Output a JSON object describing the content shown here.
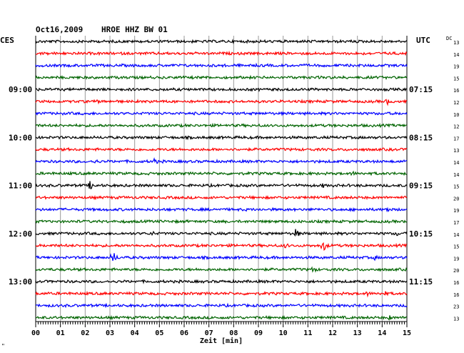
{
  "header": {
    "date": "Oct16,2009",
    "station": "HROE HHZ BW 01",
    "left_zone": "CES",
    "right_zone": "UTC",
    "dc_label": "DC"
  },
  "footer": {
    "xlabel": "Zeit [min]",
    "corner_mark": "\""
  },
  "chart_data": {
    "type": "line",
    "title": "Oct16,2009  HROE HHZ BW 01",
    "xlabel": "Zeit [min]",
    "xlim": [
      0,
      15
    ],
    "x_ticks": [
      "00",
      "01",
      "02",
      "03",
      "04",
      "05",
      "06",
      "07",
      "08",
      "09",
      "10",
      "11",
      "12",
      "13",
      "14",
      "15"
    ],
    "trace_count": 24,
    "trace_minutes": 15,
    "trace_colors": [
      "#000000",
      "#ff0000",
      "#0000ff",
      "#006400"
    ],
    "left_time_labels": [
      {
        "trace": 4,
        "text": "09:00"
      },
      {
        "trace": 8,
        "text": "10:00"
      },
      {
        "trace": 12,
        "text": "11:00"
      },
      {
        "trace": 16,
        "text": "12:00"
      },
      {
        "trace": 20,
        "text": "13:00"
      }
    ],
    "right_time_labels": [
      {
        "trace": 4,
        "text": "07:15"
      },
      {
        "trace": 8,
        "text": "08:15"
      },
      {
        "trace": 12,
        "text": "09:15"
      },
      {
        "trace": 16,
        "text": "10:15"
      },
      {
        "trace": 20,
        "text": "11:15"
      }
    ],
    "dc_values": [
      "13",
      "14",
      "19",
      "15",
      "16",
      "12",
      "10",
      "12",
      "17",
      "13",
      "14",
      "14",
      "15",
      "20",
      "19",
      "17",
      "14",
      "15",
      "19",
      "20",
      "16",
      "16",
      "23",
      "13"
    ],
    "events": [
      {
        "trace": 0,
        "minute": 12.7,
        "amplitude": 3
      },
      {
        "trace": 5,
        "minute": 2.5,
        "amplitude": 3
      },
      {
        "trace": 5,
        "minute": 14.2,
        "amplitude": 5
      },
      {
        "trace": 10,
        "minute": 2.4,
        "amplitude": 4
      },
      {
        "trace": 10,
        "minute": 4.8,
        "amplitude": 5
      },
      {
        "trace": 11,
        "minute": 12.8,
        "amplitude": 4
      },
      {
        "trace": 12,
        "minute": 2.2,
        "amplitude": 7
      },
      {
        "trace": 12,
        "minute": 11.6,
        "amplitude": 4
      },
      {
        "trace": 14,
        "minute": 14.2,
        "amplitude": 5
      },
      {
        "trace": 16,
        "minute": 4.7,
        "amplitude": 4
      },
      {
        "trace": 16,
        "minute": 10.5,
        "amplitude": 7
      },
      {
        "trace": 16,
        "minute": 14.6,
        "amplitude": 4
      },
      {
        "trace": 17,
        "minute": 10.1,
        "amplitude": 4
      },
      {
        "trace": 17,
        "minute": 11.6,
        "amplitude": 9
      },
      {
        "trace": 18,
        "minute": 3.1,
        "amplitude": 10
      },
      {
        "trace": 18,
        "minute": 13.7,
        "amplitude": 4
      },
      {
        "trace": 19,
        "minute": 11.2,
        "amplitude": 5
      },
      {
        "trace": 21,
        "minute": 13.4,
        "amplitude": 4
      },
      {
        "trace": 21,
        "minute": 14.1,
        "amplitude": 4
      },
      {
        "trace": 23,
        "minute": 14.3,
        "amplitude": 4
      }
    ],
    "grid": true
  }
}
